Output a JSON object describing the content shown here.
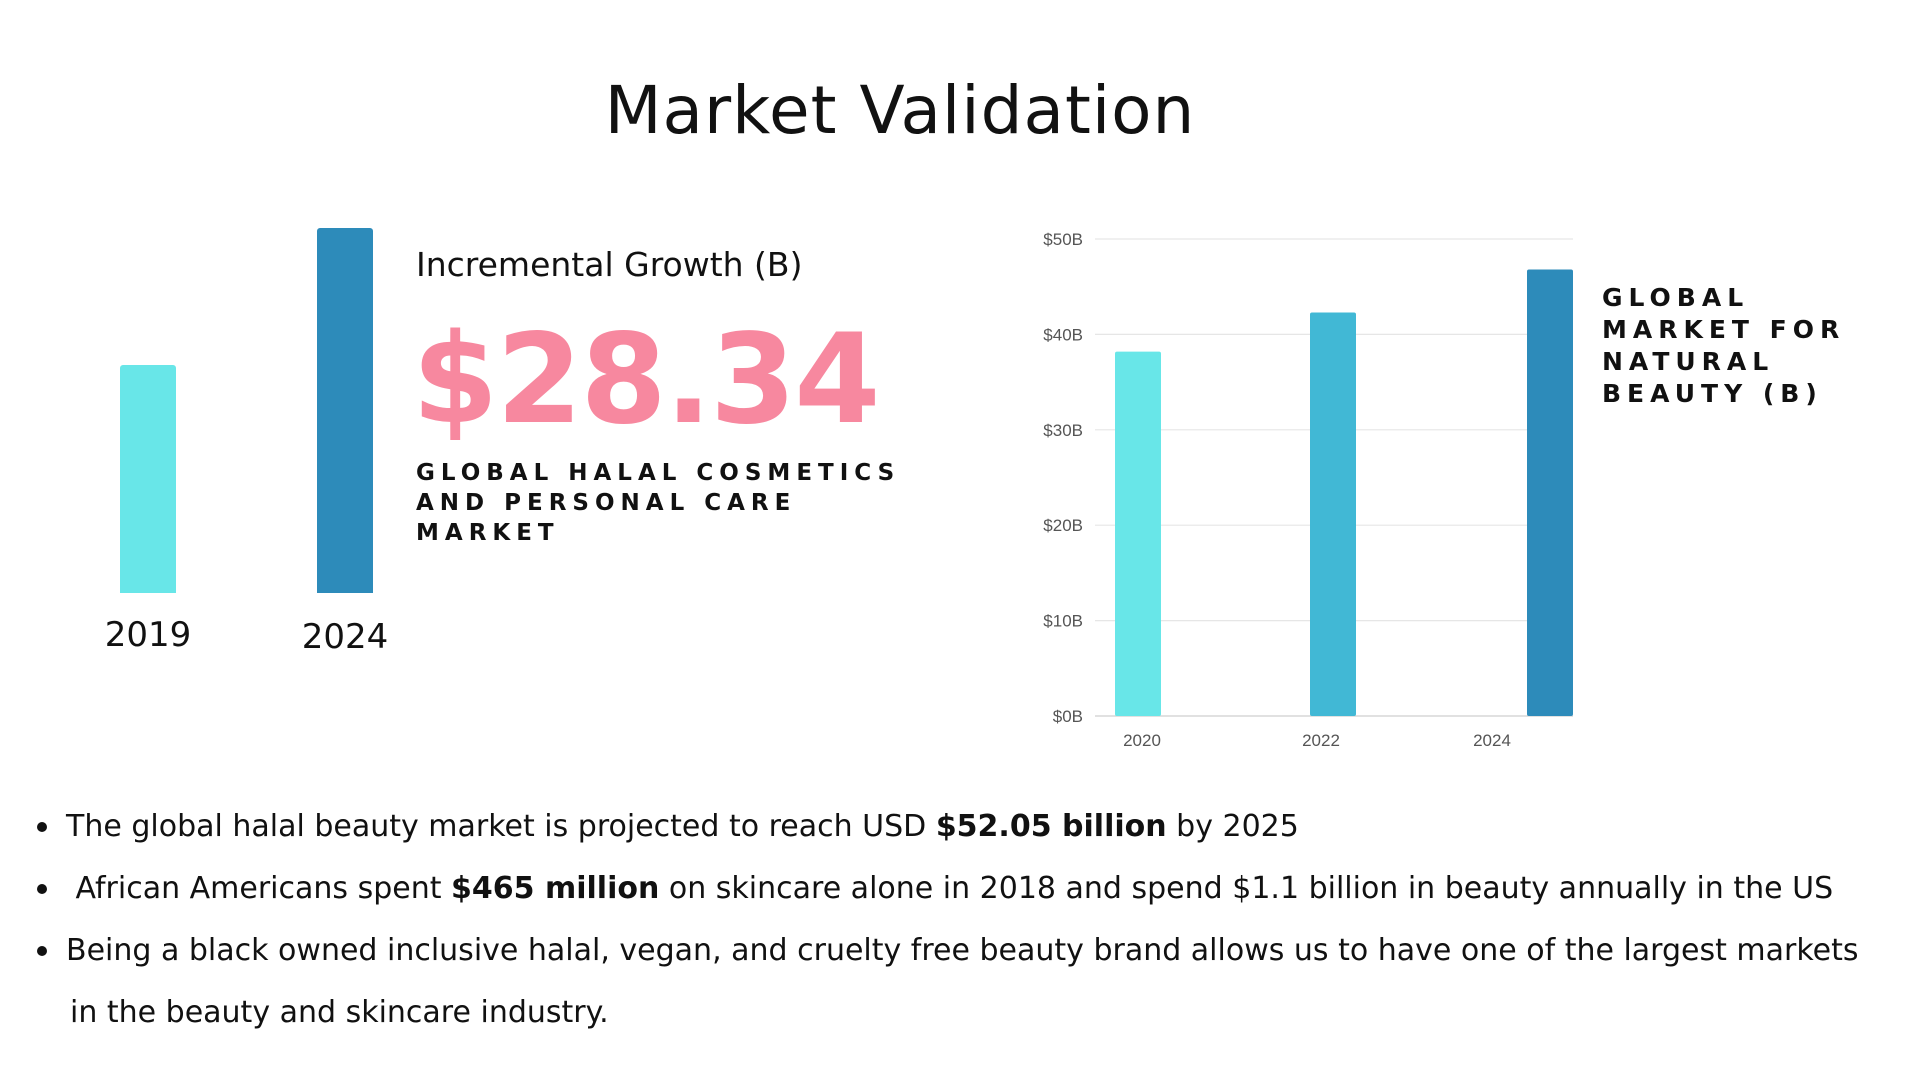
{
  "title": "Market Validation",
  "colors": {
    "light": "#68e6e8",
    "mid": "#41b8d5",
    "dark": "#2d8bba",
    "pink": "#f7889f",
    "grid": "#e6e6e6"
  },
  "left_stat": {
    "label": "Incremental Growth (B)",
    "value": "$28.34",
    "caption_line1": "GLOBAL HALAL COSMETICS",
    "caption_line2": "AND PERSONAL CARE MARKET"
  },
  "right_caption": [
    "GLOBAL",
    "MARKET FOR",
    "NATURAL",
    "BEAUTY (B)"
  ],
  "chart_data": [
    {
      "type": "bar",
      "title": "Global Halal Cosmetics and Personal Care Market",
      "categories": [
        "2019",
        "2024"
      ],
      "values": [
        62.6,
        100
      ],
      "unit": "relative height (no axis shown)",
      "colors": [
        "#68e6e8",
        "#2d8bba"
      ]
    },
    {
      "type": "bar",
      "title": "Global Market for Natural Beauty (B)",
      "categories": [
        "2020",
        "2022",
        "2024"
      ],
      "values": [
        38.2,
        42.3,
        46.8
      ],
      "ylim": [
        0,
        50
      ],
      "yticks": [
        "$0B",
        "$10B",
        "$20B",
        "$30B",
        "$40B",
        "$50B"
      ],
      "grid": true,
      "colors": [
        "#68e6e8",
        "#41b8d5",
        "#2d8bba"
      ]
    }
  ],
  "bullets": [
    {
      "pre": "The global halal beauty market is projected to reach USD ",
      "bold": "$52.05 billion",
      "post": " by 2025"
    },
    {
      "pre": " African Americans spent ",
      "bold": "$465 million",
      "post": " on skincare alone in 2018 and spend $1.1 billion in beauty annually in the US"
    },
    {
      "pre": "Being a black owned inclusive halal, vegan, and cruelty free beauty brand allows us to have one of the largest markets",
      "cont": "in the beauty and skincare industry."
    }
  ]
}
